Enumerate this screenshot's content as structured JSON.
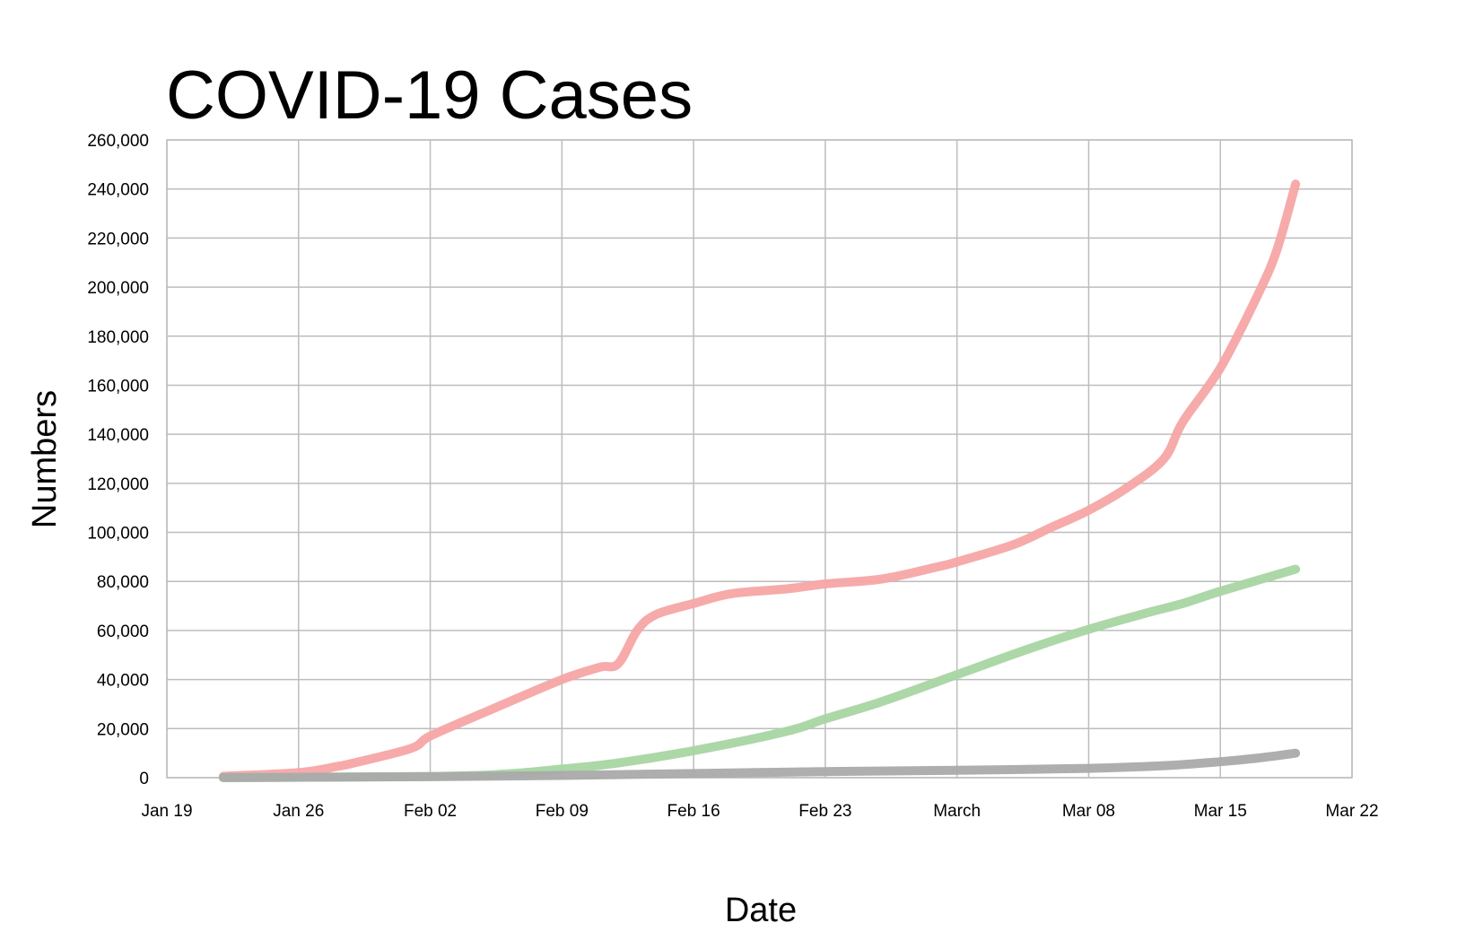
{
  "chart_data": {
    "type": "line",
    "title": "COVID-19 Cases",
    "xlabel": "Date",
    "ylabel": "Numbers",
    "x_axis": {
      "ticks": [
        "Jan 19",
        "Jan 26",
        "Feb 02",
        "Feb 09",
        "Feb 16",
        "Feb 23",
        "March",
        "Mar 08",
        "Mar 15",
        "Mar 22"
      ],
      "range": [
        "2020-01-19",
        "2020-03-22"
      ]
    },
    "y_axis": {
      "ticks": [
        "0",
        "20,000",
        "40,000",
        "60,000",
        "80,000",
        "100,000",
        "120,000",
        "140,000",
        "160,000",
        "180,000",
        "200,000",
        "220,000",
        "240,000",
        "260,000"
      ],
      "range": [
        0,
        260000
      ]
    },
    "grid": true,
    "legend": "none",
    "series": [
      {
        "color": "#f7a5a5",
        "points": [
          [
            "2020-01-22",
            580
          ],
          [
            "2020-01-26",
            2100
          ],
          [
            "2020-01-28",
            4500
          ],
          [
            "2020-01-29",
            6100
          ],
          [
            "2020-02-01",
            12000
          ],
          [
            "2020-02-02",
            17000
          ],
          [
            "2020-02-05",
            27000
          ],
          [
            "2020-02-09",
            40000
          ],
          [
            "2020-02-11",
            45000
          ],
          [
            "2020-02-12",
            46500
          ],
          [
            "2020-02-13",
            60000
          ],
          [
            "2020-02-14",
            66500
          ],
          [
            "2020-02-16",
            71000
          ],
          [
            "2020-02-18",
            75000
          ],
          [
            "2020-02-21",
            77000
          ],
          [
            "2020-02-23",
            79000
          ],
          [
            "2020-02-26",
            81000
          ],
          [
            "2020-02-29",
            86000
          ],
          [
            "2020-03-01",
            88000
          ],
          [
            "2020-03-04",
            95000
          ],
          [
            "2020-03-06",
            102000
          ],
          [
            "2020-03-08",
            109000
          ],
          [
            "2020-03-10",
            118000
          ],
          [
            "2020-03-12",
            130000
          ],
          [
            "2020-03-13",
            145000
          ],
          [
            "2020-03-15",
            167000
          ],
          [
            "2020-03-17",
            197000
          ],
          [
            "2020-03-18",
            215000
          ],
          [
            "2020-03-19",
            242000
          ]
        ]
      },
      {
        "color": "#a8d5a2",
        "points": [
          [
            "2020-01-22",
            30
          ],
          [
            "2020-02-02",
            500
          ],
          [
            "2020-02-06",
            1500
          ],
          [
            "2020-02-09",
            3500
          ],
          [
            "2020-02-12",
            6000
          ],
          [
            "2020-02-16",
            11000
          ],
          [
            "2020-02-21",
            19000
          ],
          [
            "2020-02-23",
            24000
          ],
          [
            "2020-02-26",
            31000
          ],
          [
            "2020-03-01",
            42000
          ],
          [
            "2020-03-05",
            53000
          ],
          [
            "2020-03-08",
            60500
          ],
          [
            "2020-03-11",
            67000
          ],
          [
            "2020-03-13",
            71000
          ],
          [
            "2020-03-15",
            76000
          ],
          [
            "2020-03-19",
            85000
          ]
        ]
      },
      {
        "color": "#aaaaaa",
        "points": [
          [
            "2020-01-22",
            20
          ],
          [
            "2020-02-02",
            400
          ],
          [
            "2020-02-09",
            900
          ],
          [
            "2020-02-16",
            1700
          ],
          [
            "2020-02-23",
            2500
          ],
          [
            "2020-03-01",
            3000
          ],
          [
            "2020-03-08",
            3800
          ],
          [
            "2020-03-12",
            4900
          ],
          [
            "2020-03-15",
            6500
          ],
          [
            "2020-03-17",
            8000
          ],
          [
            "2020-03-19",
            10000
          ]
        ]
      }
    ]
  }
}
